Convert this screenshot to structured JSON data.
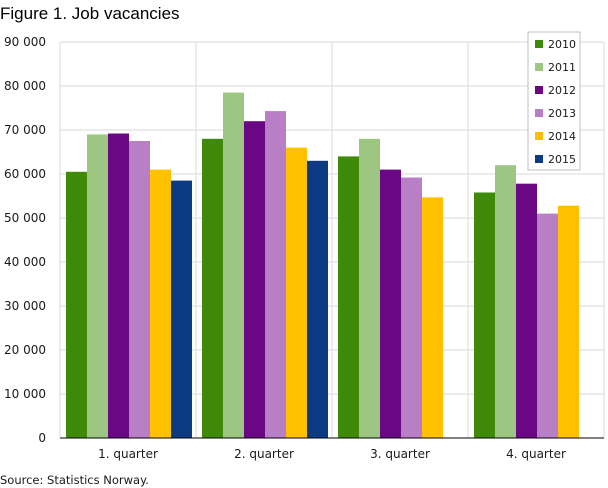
{
  "chart_data": {
    "type": "bar",
    "title": "Figure 1.  Job vacancies",
    "source": "Source: Statistics Norway.",
    "categories": [
      "1. quarter",
      "2. quarter",
      "3. quarter",
      "4. quarter"
    ],
    "ylim": [
      0,
      90000
    ],
    "yticks": [
      0,
      10000,
      20000,
      30000,
      40000,
      50000,
      60000,
      70000,
      80000,
      90000
    ],
    "ytick_labels": [
      "0",
      "10 000",
      "20 000",
      "30 000",
      "40 000",
      "50 000",
      "60 000",
      "70 000",
      "80 000",
      "90 000"
    ],
    "grid": true,
    "legend_position": "top-right",
    "series": [
      {
        "name": "2010",
        "color": "#3f8a08",
        "values": [
          60500,
          68000,
          64000,
          55800
        ]
      },
      {
        "name": "2011",
        "color": "#9dc683",
        "values": [
          69000,
          78500,
          68000,
          62000
        ]
      },
      {
        "name": "2012",
        "color": "#6a0785",
        "values": [
          69200,
          72000,
          61000,
          57800
        ]
      },
      {
        "name": "2013",
        "color": "#b87ec6",
        "values": [
          67500,
          74300,
          59200,
          51000
        ]
      },
      {
        "name": "2014",
        "color": "#ffc000",
        "values": [
          61000,
          66000,
          54700,
          52800
        ]
      },
      {
        "name": "2015",
        "color": "#0c3b83",
        "values": [
          58500,
          63000,
          null,
          null
        ]
      }
    ]
  }
}
